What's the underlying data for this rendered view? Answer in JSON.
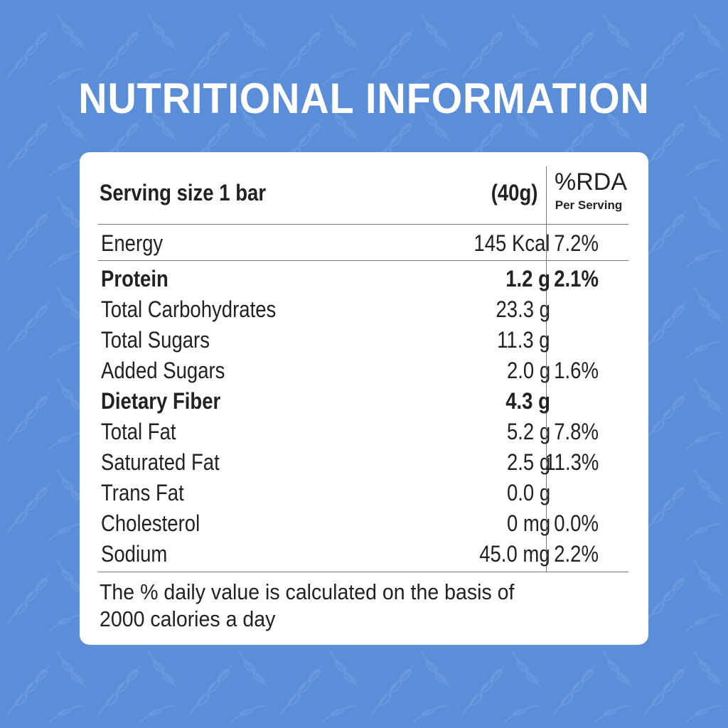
{
  "title": "NUTRITIONAL INFORMATION",
  "colors": {
    "background": "#5b8ed9",
    "card": "#ffffff",
    "text": "#222222"
  },
  "header": {
    "serving": "Serving size 1 bar",
    "amount": "(40g)",
    "rda": "%RDA",
    "rda_sub": "Per Serving"
  },
  "rows": [
    {
      "name": "Energy",
      "amount": "145 Kcal",
      "rda": "7.2%",
      "bold": false
    },
    {
      "name": "Protein",
      "amount": "1.2 g",
      "rda": "2.1%",
      "bold": true
    },
    {
      "name": "Total Carbohydrates",
      "amount": "23.3 g",
      "rda": "",
      "bold": false
    },
    {
      "name": "Total Sugars",
      "amount": "11.3 g",
      "rda": "",
      "bold": false
    },
    {
      "name": "Added Sugars",
      "amount": "2.0 g",
      "rda": "1.6%",
      "bold": false
    },
    {
      "name": "Dietary Fiber",
      "amount": "4.3 g",
      "rda": "",
      "bold": true
    },
    {
      "name": "Total Fat",
      "amount": "5.2 g",
      "rda": "7.8%",
      "bold": false
    },
    {
      "name": "Saturated Fat",
      "amount": "2.5 g",
      "rda": "11.3%",
      "bold": false
    },
    {
      "name": "Trans Fat",
      "amount": "0.0 g",
      "rda": "",
      "bold": false
    },
    {
      "name": "Cholesterol",
      "amount": "0 mg",
      "rda": "0.0%",
      "bold": false
    },
    {
      "name": "Sodium",
      "amount": "45.0 mg",
      "rda": "2.2%",
      "bold": false
    }
  ],
  "note": "The % daily value is calculated on the basis of 2000 calories a day"
}
